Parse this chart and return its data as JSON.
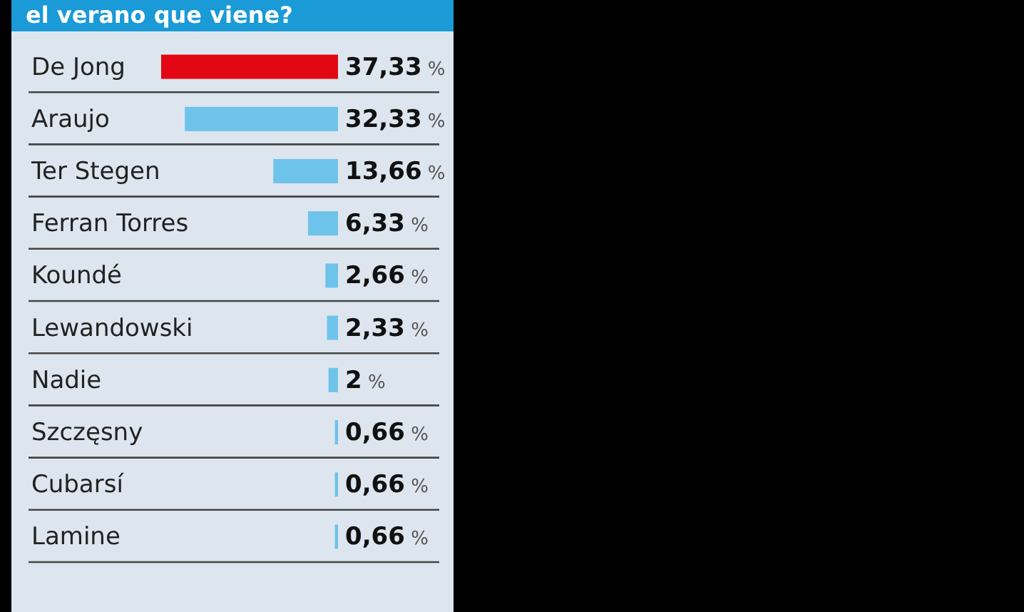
{
  "chart_data": {
    "type": "bar",
    "orientation": "horizontal",
    "title": "el verano que viene?",
    "categories": [
      "De Jong",
      "Araujo",
      "Ter Stegen",
      "Ferran Torres",
      "Koundé",
      "Lewandowski",
      "Nadie",
      "Szczęsny",
      "Cubarsí",
      "Lamine"
    ],
    "values": [
      37.33,
      32.33,
      13.66,
      6.33,
      2.66,
      2.33,
      2,
      0.66,
      0.66,
      0.66
    ],
    "colors": [
      "#e30613",
      "#6ec3ea",
      "#6ec3ea",
      "#6ec3ea",
      "#6ec3ea",
      "#6ec3ea",
      "#6ec3ea",
      "#6ec3ea",
      "#6ec3ea",
      "#6ec3ea"
    ],
    "value_labels": [
      "37,33 %",
      "32,33 %",
      "13,66 %",
      "6,33 %",
      "2,66 %",
      "2,33 %",
      "2 %",
      "0,66 %",
      "0,66 %",
      "0,66 %"
    ],
    "tick_labels": "y"
  }
}
